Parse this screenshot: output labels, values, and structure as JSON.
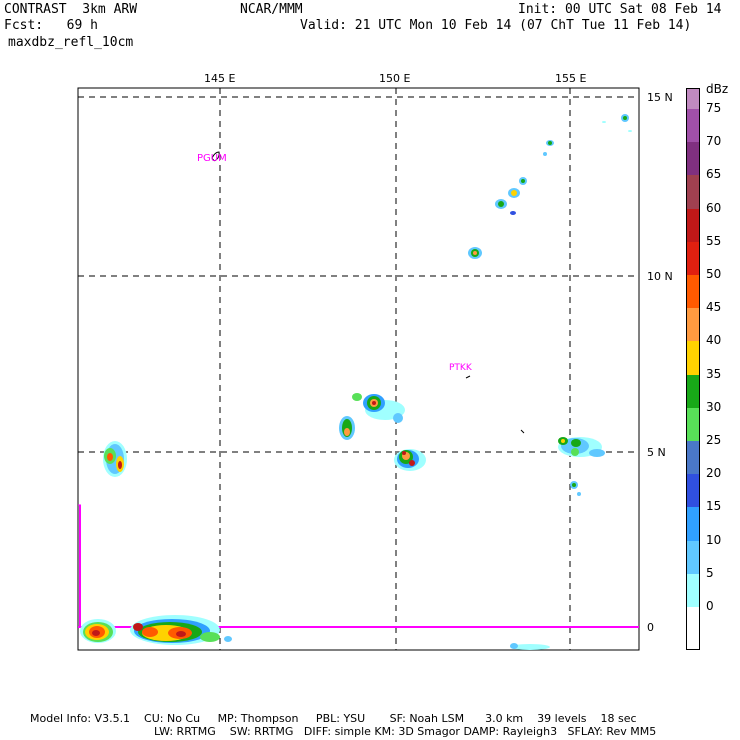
{
  "header": {
    "model": "CONTRAST  3km ARW",
    "forecast": "Fcst:   69 h",
    "field": "maxdbz_refl_10cm",
    "center": "NCAR/MMM",
    "init": "Init: 00 UTC Sat 08 Feb 14",
    "valid": "Valid: 21 UTC Mon 10 Feb 14 (07 ChT Tue 11 Feb 14)"
  },
  "map": {
    "lon_labels": [
      "145 E",
      "150 E",
      "155 E"
    ],
    "lat_labels": [
      "15 N",
      "10 N",
      "5 N",
      "0"
    ],
    "stations": [
      "PGUM",
      "PTKK"
    ],
    "extent": {
      "lon_min": 141.0,
      "lon_max": 156.9,
      "lat_min": -0.6,
      "lat_max": 15.2
    }
  },
  "colorbar": {
    "unit": "dBz",
    "levels": [
      "75",
      "70",
      "65",
      "60",
      "55",
      "50",
      "45",
      "40",
      "35",
      "30",
      "25",
      "20",
      "15",
      "10",
      "5",
      "0"
    ],
    "colors": [
      "#c08ac0",
      "#a050a8",
      "#803080",
      "#a04050",
      "#c01818",
      "#e02010",
      "#ff5a00",
      "#ff9a40",
      "#ffd200",
      "#18a818",
      "#58e058",
      "#4a78c8",
      "#3050e0",
      "#30a0ff",
      "#60c8ff",
      "#a0ffff",
      "#ffffff"
    ]
  },
  "footer": {
    "line1": "Model Info: V3.5.1    CU: No Cu     MP: Thompson     PBL: YSU       SF: Noah LSM      3.0 km    39 levels    18 sec",
    "line2": "LW: RRTMG    SW: RRTMG   DIFF: simple KM: 3D Smagor DAMP: Rayleigh3   SFLAY: Rev MM5"
  }
}
